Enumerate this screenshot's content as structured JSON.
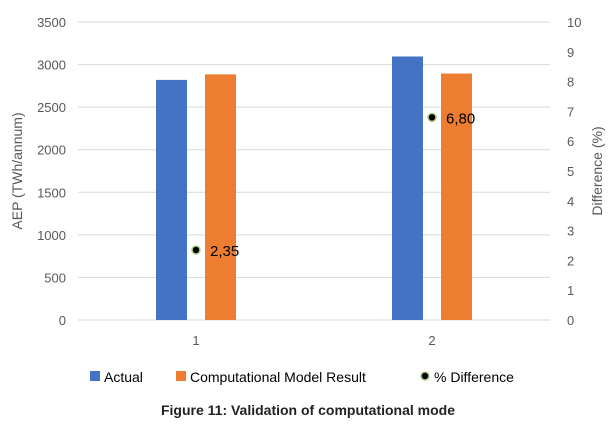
{
  "chart_data": {
    "type": "bar",
    "categories": [
      "1",
      "2"
    ],
    "series": [
      {
        "name": "Actual",
        "axis": "left",
        "type": "bar",
        "color": "#4472C4",
        "values": [
          2820,
          3095
        ]
      },
      {
        "name": "Computational Model Result",
        "axis": "left",
        "type": "bar",
        "color": "#ED7D31",
        "values": [
          2885,
          2895
        ]
      },
      {
        "name": "% Difference",
        "axis": "right",
        "type": "scatter",
        "color": "#000000",
        "values": [
          2.35,
          6.8
        ],
        "labels": [
          "2,35",
          "6,80"
        ]
      }
    ],
    "ylabel": "AEP (TWh/annum)",
    "y2label": "Difference (%)",
    "ylim": [
      0,
      3500
    ],
    "y2lim": [
      0,
      10
    ],
    "yticks": [
      0,
      500,
      1000,
      1500,
      2000,
      2500,
      3000,
      3500
    ],
    "y2ticks": [
      0,
      1,
      2,
      3,
      4,
      5,
      6,
      7,
      8,
      9,
      10
    ],
    "grid": true,
    "legend": "bottom",
    "caption": "Figure 11: Validation of computational mode"
  }
}
